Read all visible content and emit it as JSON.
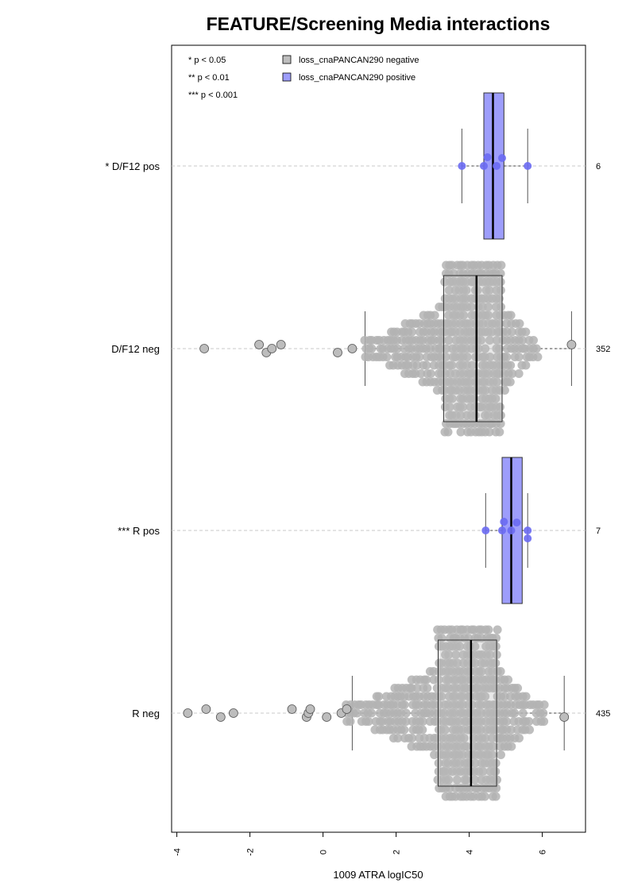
{
  "chart_data": {
    "type": "box",
    "title": "FEATURE/Screening Media interactions",
    "xlabel": "1009 ATRA logIC50",
    "xlim": [
      -4.1,
      7.2
    ],
    "x_ticks": [
      "-4",
      "-2",
      "0",
      "2",
      "4",
      "6"
    ],
    "x_tick_values": [
      -4,
      -2,
      0,
      2,
      4,
      6
    ],
    "grid": false,
    "legend_position": "top",
    "significance_legend": [
      "* p < 0.05",
      "** p < 0.01",
      "*** p < 0.001"
    ],
    "series": [
      {
        "name": "loss_cnaPANCAN290 negative",
        "color": "#bebebe"
      },
      {
        "name": "loss_cnaPANCAN290 positive",
        "color": "#9d9dfb"
      }
    ],
    "groups": [
      {
        "label": "* D/F12 pos",
        "count_label": "6",
        "series": "loss_cnaPANCAN290 positive",
        "whisker_low": 3.8,
        "q1": 4.4,
        "median": 4.65,
        "q3": 4.95,
        "whisker_high": 5.6,
        "points": [
          3.8,
          4.4,
          4.5,
          4.75,
          4.9,
          5.6
        ]
      },
      {
        "label": "D/F12 neg",
        "count_label": "352",
        "series": "loss_cnaPANCAN290 negative",
        "whisker_low": 1.15,
        "q1": 3.3,
        "median": 4.2,
        "q3": 4.9,
        "whisker_high": 6.8,
        "outliers": [
          -3.25,
          -1.75,
          -1.55,
          -1.4,
          -1.15,
          0.4,
          0.8,
          6.8
        ],
        "min_dot": 1.15,
        "max_dot": 5.9
      },
      {
        "label": "*** R pos",
        "count_label": "7",
        "series": "loss_cnaPANCAN290 positive",
        "whisker_low": 4.45,
        "q1": 4.9,
        "median": 5.15,
        "q3": 5.45,
        "whisker_high": 5.6,
        "points": [
          4.45,
          4.9,
          4.95,
          5.15,
          5.3,
          5.6,
          5.6
        ]
      },
      {
        "label": "R neg",
        "count_label": "435",
        "series": "loss_cnaPANCAN290 negative",
        "whisker_low": 0.8,
        "q1": 3.15,
        "median": 4.05,
        "q3": 4.75,
        "whisker_high": 6.6,
        "outliers": [
          -3.7,
          -3.2,
          -2.8,
          -2.45,
          -0.85,
          -0.45,
          -0.4,
          -0.35,
          0.1,
          0.5,
          0.65,
          6.6
        ],
        "min_dot": 0.65,
        "max_dot": 6.1
      }
    ]
  }
}
